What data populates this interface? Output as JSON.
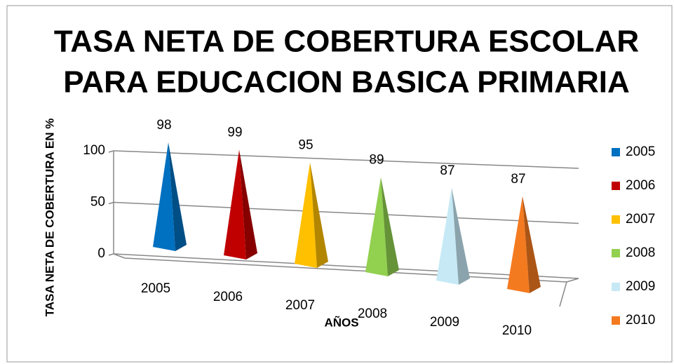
{
  "chart_data": {
    "type": "pyramid",
    "title": [
      "TASA NETA DE COBERTURA ESCOLAR",
      "PARA EDUCACION BASICA PRIMARIA"
    ],
    "ylabel": "TASA NETA DE COBERTURA EN %",
    "xlabel": "AÑOS",
    "categories": [
      "2005",
      "2006",
      "2007",
      "2008",
      "2009",
      "2010"
    ],
    "values": [
      98,
      99,
      95,
      89,
      87,
      87
    ],
    "colors": [
      "#0070c0",
      "#c00000",
      "#ffc000",
      "#92d050",
      "#c6e9f5",
      "#f47a20"
    ],
    "ylim": [
      0,
      100
    ],
    "yticks": [
      0,
      50,
      100
    ],
    "grid": true,
    "legend": "right"
  }
}
